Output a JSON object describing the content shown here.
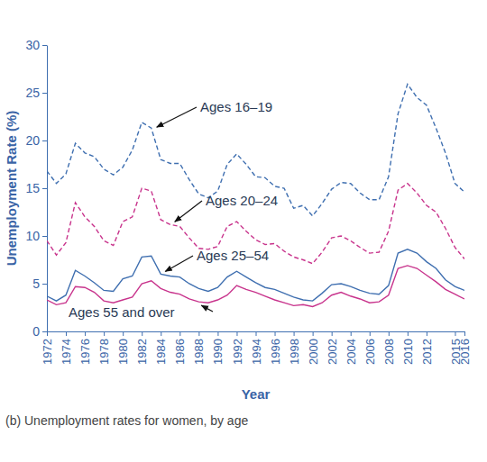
{
  "chart_data": {
    "type": "line",
    "title": "(b) Unemployment rates for women, by age",
    "xlabel": "Year",
    "ylabel": "Unemployment Rate (%)",
    "x": [
      1972,
      1973,
      1974,
      1975,
      1976,
      1977,
      1978,
      1979,
      1980,
      1981,
      1982,
      1983,
      1984,
      1985,
      1986,
      1987,
      1988,
      1989,
      1990,
      1991,
      1992,
      1993,
      1994,
      1995,
      1996,
      1997,
      1998,
      1999,
      2000,
      2001,
      2002,
      2003,
      2004,
      2005,
      2006,
      2007,
      2008,
      2009,
      2010,
      2011,
      2012,
      2013,
      2014,
      2015,
      2016
    ],
    "xlim": [
      1972,
      2016
    ],
    "xticks": [
      1972,
      1974,
      1976,
      1978,
      1980,
      1982,
      1984,
      1986,
      1988,
      1990,
      1992,
      1994,
      1996,
      1998,
      2000,
      2002,
      2004,
      2006,
      2008,
      2010,
      2012,
      2015,
      2016
    ],
    "ylim": [
      0,
      30
    ],
    "yticks": [
      0,
      5,
      10,
      15,
      20,
      25,
      30
    ],
    "grid": false,
    "series": [
      {
        "name": "Ages 16–19",
        "color": "#3f6fb0",
        "line_style": "dashed",
        "values": [
          16.8,
          15.5,
          16.5,
          19.7,
          18.7,
          18.3,
          17.0,
          16.4,
          17.2,
          19.0,
          21.9,
          21.3,
          18.0,
          17.6,
          17.6,
          15.9,
          14.4,
          14.0,
          14.7,
          17.5,
          18.6,
          17.5,
          16.2,
          16.1,
          15.2,
          15.0,
          12.9,
          13.2,
          12.1,
          13.4,
          14.9,
          15.6,
          15.5,
          14.5,
          13.8,
          13.8,
          16.2,
          22.8,
          25.9,
          24.5,
          23.7,
          21.3,
          18.7,
          15.5,
          14.6
        ]
      },
      {
        "name": "Ages 20–24",
        "color": "#c8338c",
        "line_style": "dashed",
        "values": [
          9.5,
          8.0,
          9.3,
          13.5,
          12.0,
          11.0,
          9.5,
          9.0,
          11.5,
          12.0,
          15.0,
          14.7,
          11.7,
          11.2,
          11.0,
          9.8,
          8.7,
          8.6,
          8.9,
          11.0,
          11.5,
          10.5,
          9.6,
          9.1,
          9.2,
          8.4,
          7.8,
          7.5,
          7.1,
          8.3,
          9.8,
          10.0,
          9.5,
          8.8,
          8.2,
          8.3,
          10.5,
          14.8,
          15.5,
          14.5,
          13.2,
          12.5,
          10.8,
          8.8,
          7.6
        ]
      },
      {
        "name": "Ages 25–54",
        "color": "#3f6fb0",
        "line_style": "solid",
        "values": [
          3.7,
          3.2,
          3.8,
          6.4,
          5.8,
          5.1,
          4.3,
          4.2,
          5.5,
          5.8,
          7.8,
          7.9,
          6.0,
          5.8,
          5.7,
          5.0,
          4.5,
          4.2,
          4.6,
          5.7,
          6.3,
          5.7,
          5.1,
          4.6,
          4.4,
          4.0,
          3.6,
          3.3,
          3.2,
          4.0,
          4.9,
          5.0,
          4.7,
          4.3,
          4.0,
          3.9,
          4.8,
          8.2,
          8.6,
          8.2,
          7.3,
          6.6,
          5.4,
          4.7,
          4.3
        ]
      },
      {
        "name": "Ages 55 and over",
        "color": "#c8338c",
        "line_style": "solid",
        "values": [
          3.3,
          2.8,
          3.0,
          4.7,
          4.6,
          4.1,
          3.2,
          3.0,
          3.3,
          3.6,
          5.0,
          5.3,
          4.5,
          4.1,
          3.9,
          3.4,
          3.1,
          3.0,
          3.3,
          3.8,
          4.8,
          4.4,
          4.1,
          3.7,
          3.3,
          3.0,
          2.7,
          2.8,
          2.6,
          3.0,
          3.8,
          4.1,
          3.7,
          3.4,
          3.0,
          3.1,
          3.8,
          6.6,
          6.9,
          6.6,
          5.9,
          5.2,
          4.4,
          3.9,
          3.4
        ]
      }
    ]
  }
}
